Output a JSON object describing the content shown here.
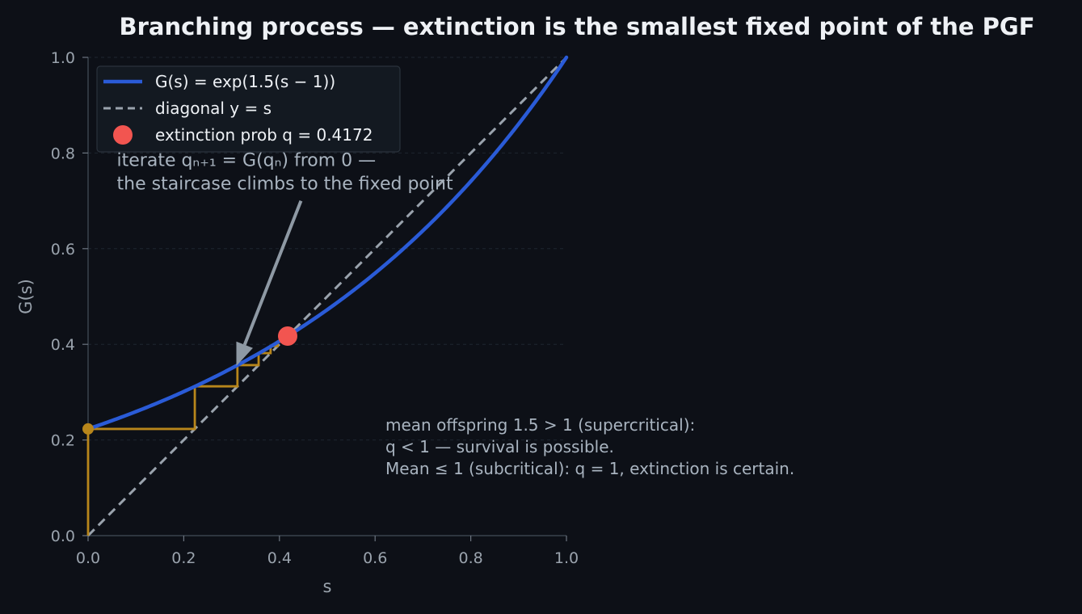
{
  "chart_data": {
    "type": "line",
    "title": "Branching process — extinction is the smallest fixed point of the PGF",
    "xlabel": "s",
    "ylabel": "G(s)",
    "xlim": [
      0,
      1
    ],
    "ylim": [
      0,
      1
    ],
    "x_ticks": [
      "0.0",
      "0.2",
      "0.4",
      "0.6",
      "0.8",
      "1.0"
    ],
    "y_ticks": [
      "0.0",
      "0.2",
      "0.4",
      "0.6",
      "0.8",
      "1.0"
    ],
    "grid": "horizontal dashed",
    "legend_position": "top-left",
    "series": [
      {
        "name": "G(s) = exp(1.5(s − 1))",
        "kind": "curve",
        "lambda": 1.5,
        "color": "#2a5bd7"
      },
      {
        "name": "diagonal y = s",
        "kind": "dashed-line",
        "points": [
          [
            0,
            0
          ],
          [
            1,
            1
          ]
        ],
        "color": "#9aa3ad"
      },
      {
        "name": "extinction prob q = 0.4172",
        "kind": "marker",
        "x": 0.4172,
        "y": 0.4172,
        "color": "#f25550"
      }
    ],
    "staircase": {
      "color": "#b8861b",
      "iterates": [
        0,
        0.2231,
        0.3122,
        0.3565,
        0.3815,
        0.3963,
        0.4053,
        0.4108,
        0.4142,
        0.4163
      ]
    },
    "start_marker": {
      "x": 0,
      "y": 0.2231,
      "color": "#b8861b"
    },
    "annotation_arrow": {
      "lines": [
        "iterate qₙ₊₁ = G(qₙ) from 0 —",
        "the staircase climbs to the fixed point"
      ],
      "text_at": [
        0.06,
        0.8
      ],
      "tail": [
        0.445,
        0.7
      ],
      "head": [
        0.31,
        0.355
      ]
    },
    "note": {
      "lines": [
        "mean offspring 1.5 > 1 (supercritical):",
        "q < 1 — survival is possible.",
        "Mean ≤ 1 (subcritical): q = 1, extinction is certain."
      ]
    }
  }
}
